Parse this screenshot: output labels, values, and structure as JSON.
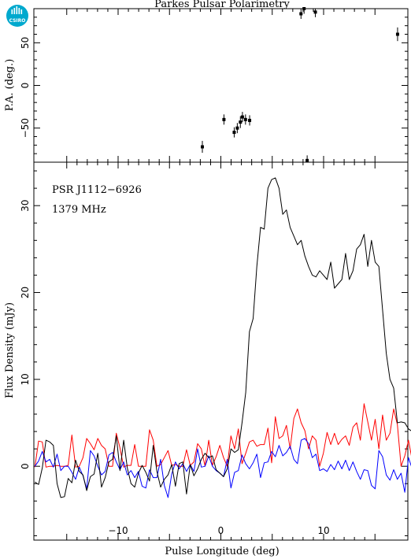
{
  "chart_data": [
    {
      "type": "scatter",
      "title": "Parkes Pulsar Polarimetry",
      "ylabel": "P.A. (deg.)",
      "xlim": [
        -18.2,
        18.2
      ],
      "ylim": [
        -90,
        90
      ],
      "xticks": [
        -10,
        0,
        10
      ],
      "yticks": [
        -50,
        0,
        50
      ],
      "series": [
        {
          "x": [
            -1.8,
            0.3,
            1.3,
            1.6,
            1.9,
            2.1,
            2.4,
            2.8,
            7.8,
            8.1,
            8.4,
            9.2,
            17.2
          ],
          "y": [
            -72,
            -40,
            -55,
            -50,
            -43,
            -37,
            -40,
            -41,
            84,
            90,
            -88,
            86,
            60
          ],
          "err": [
            7,
            6,
            6,
            6,
            7,
            6,
            6,
            6,
            6,
            6,
            6,
            6,
            8
          ]
        }
      ]
    },
    {
      "type": "line",
      "xlabel": "Pulse Longitude (deg)",
      "ylabel": "Flux Density (mJy)",
      "xlim": [
        -18.2,
        18.2
      ],
      "ylim": [
        -8.5,
        35
      ],
      "xticks": [
        -10,
        0,
        10
      ],
      "yticks": [
        0,
        10,
        20,
        30
      ],
      "annotations": [
        "PSR J1112−6926",
        "1379 MHz"
      ],
      "x_start": -18.1,
      "x_step": 0.36,
      "series": [
        {
          "color": "#000000",
          "values": [
            -1.8,
            -2.1,
            -0.2,
            3.0,
            2.8,
            2.4,
            -2.0,
            -3.6,
            -3.5,
            -1.4,
            -1.9,
            0.7,
            -0.6,
            -1.0,
            -2.8,
            -1.2,
            -0.9,
            1.5,
            -2.4,
            -1.3,
            0.5,
            0.8,
            3.5,
            -0.5,
            3.0,
            -0.2,
            -2.0,
            -2.4,
            -0.8,
            0.1,
            -0.7,
            -1.7,
            2.4,
            -0.6,
            -2.4,
            -1.5,
            -1.0,
            0.2,
            -2.3,
            0.3,
            0.5,
            -3.2,
            0.2,
            -1.1,
            -0.3,
            0.8,
            1.5,
            1.0,
            1.2,
            -0.4,
            -0.8,
            -1.2,
            -0.3,
            2.0,
            1.6,
            1.9,
            5.0,
            8.5,
            15.5,
            17.0,
            23.0,
            27.5,
            27.3,
            32.0,
            33.0,
            33.2,
            32.0,
            29.0,
            29.5,
            27.5,
            26.5,
            25.5,
            26.0,
            24.2,
            23.0,
            22.0,
            21.8,
            22.5,
            22.0,
            21.5,
            23.5,
            20.5,
            21.0,
            21.5,
            24.5,
            21.5,
            22.5,
            25.0,
            25.5,
            26.7,
            23.0,
            26.0,
            23.5,
            23.0,
            18.0,
            13.0,
            10.0,
            9.0,
            5.0,
            5.1,
            5.0,
            4.3,
            4.0,
            4.8,
            4.1,
            3.8,
            4.5,
            2.0,
            1.8,
            0.5,
            -1.0,
            -2.3,
            -3.9,
            -4.0,
            -1.3,
            -1.5,
            -0.4,
            -0.5,
            -2.9,
            -0.5
          ]
        },
        {
          "color": "#ff0000",
          "values": [
            -0.1,
            2.9,
            2.8,
            -0.1,
            0.0,
            0.0,
            0.1,
            0.0,
            0.0,
            0.1,
            3.6,
            -0.1,
            0.0,
            1.0,
            3.2,
            2.6,
            1.9,
            3.2,
            2.4,
            2.0,
            0.0,
            0.0,
            3.8,
            2.1,
            -0.1,
            0.1,
            0.1,
            2.5,
            0.0,
            0.0,
            0.0,
            4.2,
            3.0,
            0.0,
            0.2,
            1.0,
            1.8,
            0.1,
            0.2,
            0.0,
            0.0,
            1.9,
            0.1,
            0.5,
            2.6,
            2.0,
            0.0,
            3.0,
            0.1,
            1.1,
            2.4,
            1.0,
            0.0,
            3.5,
            2.0,
            4.3,
            0.3,
            1.5,
            2.8,
            3.0,
            2.3,
            2.5,
            2.5,
            4.4,
            0.4,
            5.7,
            3.2,
            3.5,
            4.7,
            2.0,
            5.5,
            6.6,
            5.0,
            4.1,
            2.0,
            3.5,
            3.0,
            0.0,
            1.5,
            3.9,
            2.5,
            3.8,
            2.5,
            3.1,
            3.5,
            2.4,
            4.5,
            5.0,
            3.0,
            7.2,
            5.1,
            3.0,
            5.4,
            2.0,
            5.9,
            3.0,
            3.8,
            6.6,
            4.8,
            0.0,
            1.2,
            3.0,
            0.7,
            1.1,
            2.8,
            2.0,
            2.5,
            3.0,
            1.1,
            0.0,
            3.1,
            0.0,
            0.1,
            0.0,
            0.0,
            0.0,
            0.0,
            0.0,
            0.0,
            0.0
          ]
        },
        {
          "color": "#0000ff",
          "values": [
            0.0,
            0.6,
            1.7,
            0.5,
            0.8,
            -0.1,
            1.4,
            -0.5,
            0.0,
            0.0,
            -0.7,
            -1.5,
            -0.1,
            -1.1,
            -2.6,
            1.8,
            1.2,
            0.0,
            -1.0,
            -0.6,
            1.3,
            1.6,
            0.5,
            -0.4,
            0.5,
            -1.0,
            -0.5,
            -1.3,
            -0.6,
            -2.3,
            -2.5,
            -0.4,
            -1.3,
            -1.3,
            0.8,
            -2.2,
            -3.6,
            -0.9,
            0.5,
            -0.3,
            0.3,
            -0.6,
            0.2,
            -0.6,
            2.0,
            -0.1,
            0.0,
            1.2,
            0.0,
            -0.5,
            -0.8,
            -1.2,
            0.8,
            -2.5,
            -0.7,
            -0.5,
            1.3,
            0.3,
            -0.3,
            0.4,
            1.4,
            -1.3,
            0.4,
            0.5,
            1.7,
            1.1,
            2.4,
            1.2,
            1.6,
            2.3,
            0.8,
            0.3,
            3.0,
            3.2,
            2.6,
            1.0,
            1.4,
            -0.5,
            -0.3,
            -0.6,
            0.2,
            -0.4,
            0.6,
            -0.3,
            0.7,
            -0.5,
            0.5,
            -0.6,
            -1.5,
            -0.4,
            -0.5,
            -2.2,
            -2.6,
            1.8,
            1.1,
            -1.0,
            -1.6,
            -0.4,
            -1.5,
            -0.8,
            -3.0,
            1.0,
            -0.3,
            0.0,
            0.3,
            -0.3,
            1.5,
            2.6,
            -0.6,
            1.5,
            0.2,
            -0.1,
            -0.1,
            -0.6,
            -0.7,
            -0.3,
            -1.6,
            0.5,
            -1.4,
            -2.5
          ]
        }
      ]
    }
  ],
  "logo": {
    "text": "CSIRO",
    "color": "#00a9ce"
  }
}
